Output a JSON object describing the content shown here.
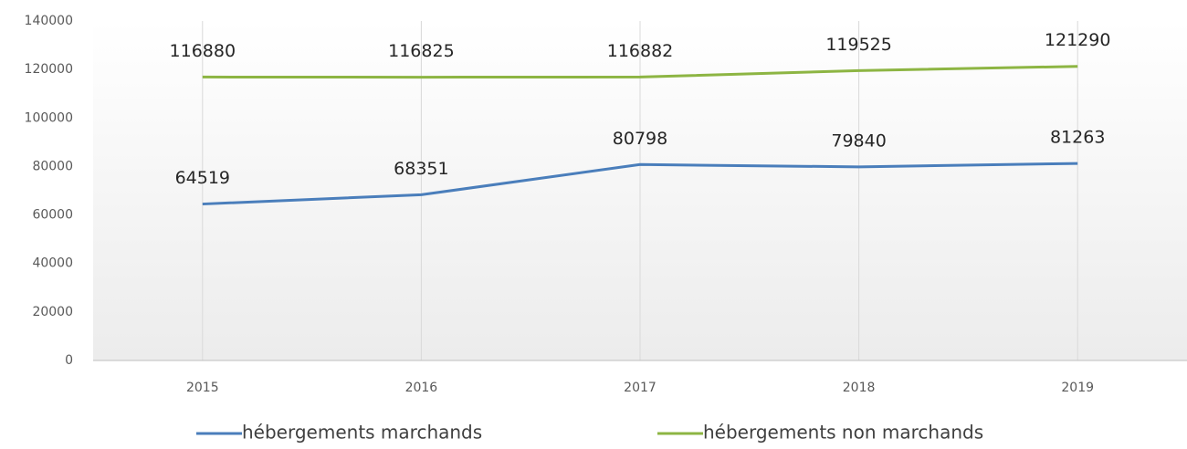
{
  "chart_data": {
    "type": "line",
    "categories": [
      "2015",
      "2016",
      "2017",
      "2018",
      "2019"
    ],
    "series": [
      {
        "name": "hébergements marchands",
        "color": "#4a7ebb",
        "values": [
          64519,
          68351,
          80798,
          79840,
          81263
        ]
      },
      {
        "name": "hébergements non marchands",
        "color": "#8db543",
        "values": [
          116880,
          116825,
          116882,
          119525,
          121290
        ]
      }
    ],
    "ylim": [
      0,
      140000
    ],
    "yticks": [
      0,
      20000,
      40000,
      60000,
      80000,
      100000,
      120000,
      140000
    ],
    "grid": true,
    "legend": "bottom"
  }
}
